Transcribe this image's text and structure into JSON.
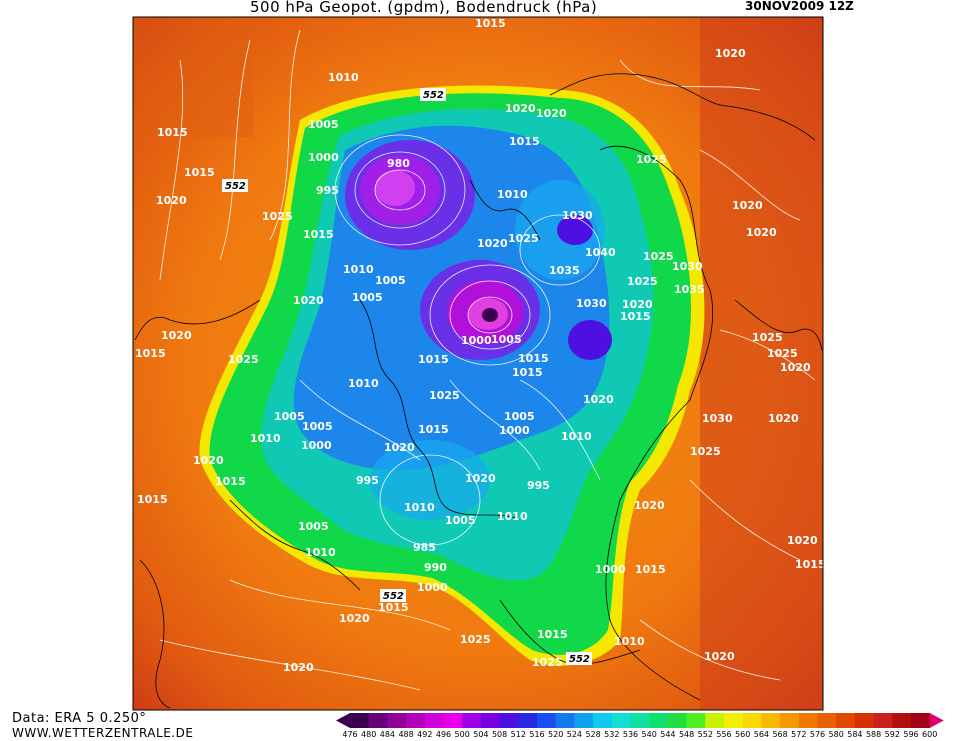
{
  "header": {
    "title": "500 hPa Geopot. (gpdm), Bodendruck (hPa)",
    "datetime": "30NOV2009  12Z"
  },
  "footer": {
    "source": "Data: ERA 5 0.250°",
    "website": "WWW.WETTERZENTRALE.DE"
  },
  "legend": {
    "levels": [
      "476",
      "480",
      "484",
      "488",
      "492",
      "496",
      "500",
      "504",
      "508",
      "512",
      "516",
      "520",
      "524",
      "528",
      "532",
      "536",
      "540",
      "544",
      "548",
      "552",
      "556",
      "560",
      "564",
      "568",
      "572",
      "576",
      "580",
      "584",
      "588",
      "592",
      "596",
      "600"
    ],
    "colors": [
      "#3c0050",
      "#6a007a",
      "#8e0096",
      "#b000b8",
      "#d000d8",
      "#e800e8",
      "#a000e8",
      "#7800e0",
      "#4e10e0",
      "#2828e0",
      "#1850f0",
      "#1478f0",
      "#10a0f0",
      "#10c8f0",
      "#10e0d0",
      "#10e0a0",
      "#10e070",
      "#20e040",
      "#50f020",
      "#c8f000",
      "#f0f000",
      "#f8d800",
      "#f8b800",
      "#f89800",
      "#f07800",
      "#e86000",
      "#e04800",
      "#d83000",
      "#c82020",
      "#b01010",
      "#a00018",
      "#e0006a"
    ]
  },
  "map": {
    "pressure_labels": [
      "1015",
      "1020",
      "1010",
      "1005",
      "1000",
      "995",
      "990",
      "985",
      "1025",
      "1030",
      "1035",
      "1040",
      "980"
    ],
    "contour_label": "552"
  }
}
